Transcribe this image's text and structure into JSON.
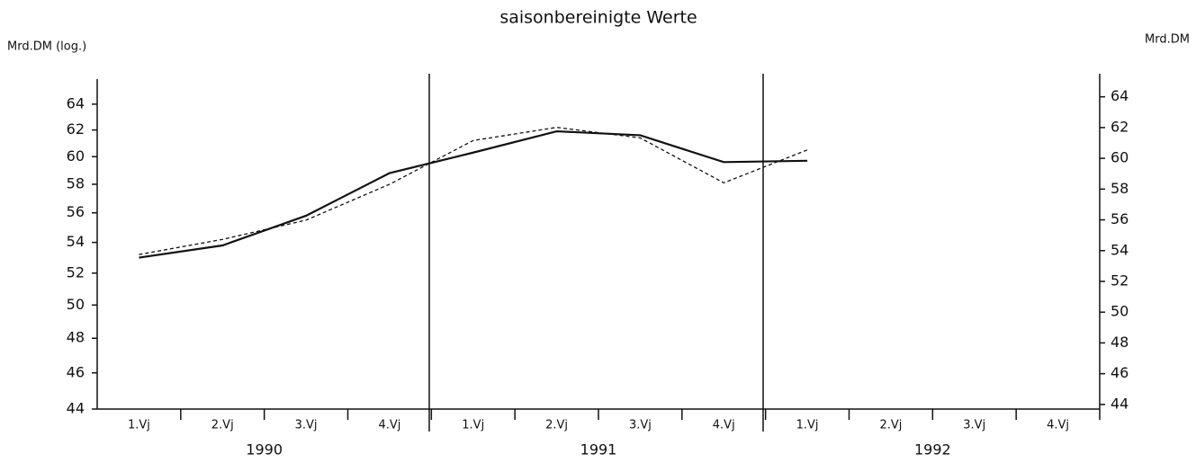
{
  "chart_data": {
    "type": "line",
    "title": "saisonbereinigte Werte",
    "ylabel": "Mrd.DM (log.)",
    "y2label": "Mrd.DM",
    "categories": [
      "1.Vj",
      "2.Vj",
      "3.Vj",
      "4.Vj",
      "1.Vj",
      "2.Vj",
      "3.Vj",
      "4.Vj",
      "1.Vj",
      "2.Vj",
      "3.Vj",
      "4.Vj"
    ],
    "years": [
      "1990",
      "1991",
      "1992"
    ],
    "series": [
      {
        "color": "#111111",
        "dash": "solid",
        "values": [
          53.0,
          53.8,
          55.8,
          58.8,
          60.3,
          61.9,
          61.6,
          59.6,
          59.7,
          null,
          null,
          null
        ]
      },
      {
        "color": "#111111",
        "dash": "dashed",
        "values": [
          53.2,
          54.2,
          55.5,
          58.0,
          61.2,
          62.2,
          61.4,
          58.1,
          60.5,
          null,
          null,
          null
        ]
      }
    ],
    "ylim": [
      44,
      66
    ],
    "yticks": [
      44,
      46,
      48,
      50,
      52,
      54,
      56,
      58,
      60,
      62,
      64
    ],
    "log_y": true,
    "y2lim": [
      43.7,
      65.5
    ],
    "y2ticks": [
      44,
      46,
      48,
      50,
      52,
      54,
      56,
      58,
      60,
      62,
      64
    ]
  }
}
